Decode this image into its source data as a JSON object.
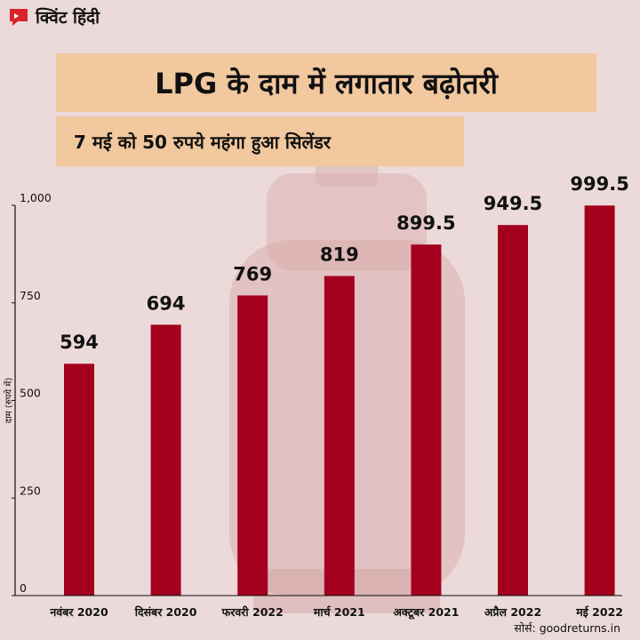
{
  "brand": {
    "name": "क्विंट हिंदी"
  },
  "header": {
    "title": "LPG के दाम में लगातार बढ़ोतरी",
    "subtitle": "7 मई को 50 रुपये महंगा हुआ सिलेंडर"
  },
  "footer": {
    "source": "सोर्स: goodreturns.in"
  },
  "colors": {
    "bar": "#a4001e",
    "title_bg": "#f2c89f",
    "background": "#ecd9d9"
  },
  "chart_data": {
    "type": "bar",
    "categories": [
      "नवंबर 2020",
      "दिसंबर 2020",
      "फरवरी 2022",
      "मार्च 2021",
      "अक्टूबर 2021",
      "अप्रैल 2022",
      "मई 2022"
    ],
    "values": [
      594,
      694,
      769,
      819,
      899.5,
      949.5,
      999.5
    ],
    "value_labels": [
      "594",
      "694",
      "769",
      "819",
      "899.5",
      "949.5",
      "999.5"
    ],
    "ylabel": "दाम (रुपये में)",
    "ylim": [
      0,
      1000
    ],
    "yticks": [
      0,
      250,
      500,
      750,
      1000
    ],
    "ytick_labels": [
      "0",
      "250",
      "500",
      "750",
      "1,000"
    ],
    "grid": false,
    "legend": "none"
  }
}
